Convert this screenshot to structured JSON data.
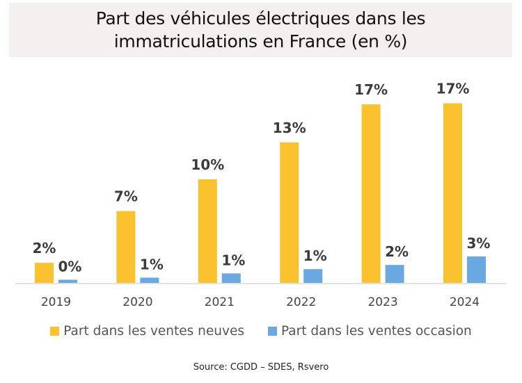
{
  "chart_data": {
    "type": "bar",
    "title": "Part des véhicules électriques dans les\nimmatriculations en France (en %)",
    "xlabel": "",
    "ylabel": "",
    "categories": [
      "2019",
      "2020",
      "2021",
      "2022",
      "2023",
      "2024"
    ],
    "series": [
      {
        "name": "Part dans les ventes neuves",
        "color": "#f9c22e",
        "values": [
          1.9,
          6.8,
          9.8,
          13.3,
          16.9,
          17.0
        ],
        "labels": [
          "2%",
          "7%",
          "10%",
          "13%",
          "17%",
          "17%"
        ]
      },
      {
        "name": "Part dans les ventes occasion",
        "color": "#6aa8e2",
        "values": [
          0.3,
          0.5,
          0.9,
          1.3,
          1.7,
          2.5
        ],
        "labels": [
          "0%",
          "1%",
          "1%",
          "1%",
          "2%",
          "3%"
        ]
      }
    ],
    "ylim": [
      0,
      20
    ],
    "grid": false,
    "legend_position": "bottom"
  },
  "source": "Source: CGDD –  SDES, Rsvero"
}
